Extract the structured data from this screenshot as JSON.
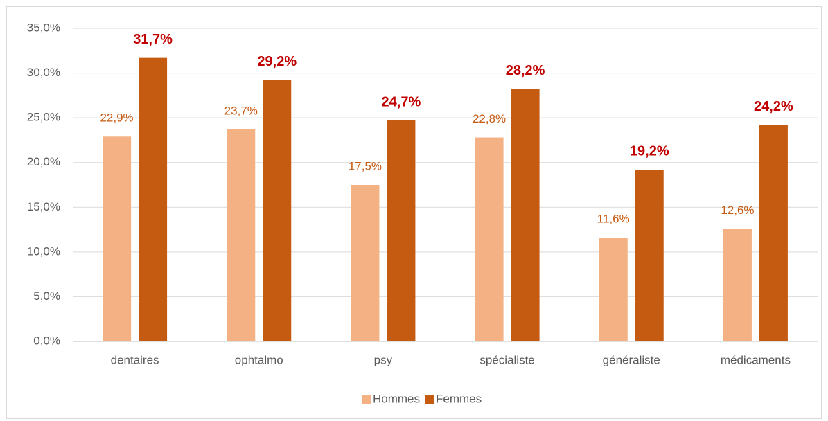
{
  "chart_data": {
    "type": "bar",
    "categories": [
      "dentaires",
      "ophtalmo",
      "psy",
      "spécialiste",
      "généraliste",
      "médicaments"
    ],
    "series": [
      {
        "name": "Hommes",
        "color": "#f4b183",
        "values": [
          22.9,
          23.7,
          17.5,
          22.8,
          11.6,
          12.6
        ],
        "value_labels": [
          "22,9%",
          "23,7%",
          "17,5%",
          "22,8%",
          "11,6%",
          "12,6%"
        ]
      },
      {
        "name": "Femmes",
        "color": "#c55a11",
        "values": [
          31.7,
          29.2,
          24.7,
          28.2,
          19.2,
          24.2
        ],
        "value_labels": [
          "31,7%",
          "29,2%",
          "24,7%",
          "28,2%",
          "19,2%",
          "24,2%"
        ]
      }
    ],
    "ylim": [
      0,
      35
    ],
    "yticks": [
      {
        "value": 0,
        "label": "0,0%"
      },
      {
        "value": 5,
        "label": "5,0%"
      },
      {
        "value": 10,
        "label": "10,0%"
      },
      {
        "value": 15,
        "label": "15,0%"
      },
      {
        "value": 20,
        "label": "20,0%"
      },
      {
        "value": 25,
        "label": "25,0%"
      },
      {
        "value": 30,
        "label": "30,0%"
      },
      {
        "value": 35,
        "label": "35,0%"
      }
    ],
    "grid": true,
    "legend": "bottom"
  }
}
